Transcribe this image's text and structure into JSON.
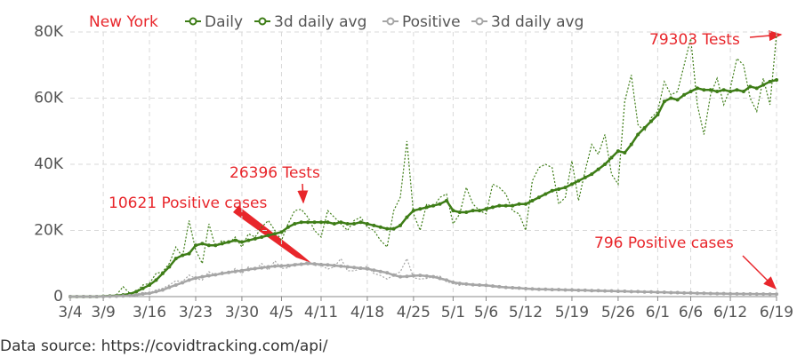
{
  "chart_data": {
    "type": "line",
    "title": "New York",
    "note": "Data source: https://covidtracking.com/api/",
    "categories": [
      "3/4",
      null,
      null,
      null,
      null,
      "3/9",
      null,
      null,
      null,
      null,
      null,
      null,
      "3/16",
      null,
      null,
      null,
      null,
      null,
      null,
      "3/23",
      null,
      null,
      null,
      null,
      null,
      null,
      "3/30",
      null,
      null,
      null,
      null,
      null,
      "4/5",
      null,
      null,
      null,
      null,
      null,
      "4/11",
      null,
      null,
      null,
      null,
      null,
      null,
      "4/18",
      null,
      null,
      null,
      null,
      null,
      null,
      "4/25",
      null,
      null,
      null,
      null,
      null,
      "5/1",
      null,
      null,
      null,
      null,
      "5/6",
      null,
      null,
      null,
      null,
      null,
      "5/12",
      null,
      null,
      null,
      null,
      null,
      null,
      "5/19",
      null,
      null,
      null,
      null,
      null,
      null,
      "5/26",
      null,
      null,
      null,
      null,
      null,
      "6/1",
      null,
      null,
      null,
      null,
      "6/6",
      null,
      null,
      null,
      null,
      null,
      "6/12",
      null,
      null,
      null,
      null,
      null,
      null,
      "6/19"
    ],
    "series": [
      {
        "name": "Daily",
        "color": "#3e7d17",
        "style": "dotted",
        "values": [
          0,
          0,
          0,
          0,
          0,
          300,
          200,
          500,
          3000,
          1000,
          1500,
          3500,
          4000,
          7000,
          7500,
          10000,
          15000,
          12000,
          23000,
          14000,
          10000,
          22000,
          15000,
          17000,
          16000,
          18000,
          15000,
          19000,
          18000,
          21000,
          23000,
          20000,
          17000,
          22000,
          26000,
          26396,
          24000,
          20000,
          18000,
          26000,
          24000,
          22000,
          20000,
          23000,
          24000,
          21000,
          20000,
          17000,
          15000,
          26000,
          30000,
          47000,
          25000,
          20000,
          28000,
          27000,
          30000,
          31000,
          22000,
          25000,
          33000,
          28000,
          26000,
          25000,
          34000,
          33000,
          31000,
          26000,
          25000,
          20000,
          35000,
          39000,
          40000,
          39000,
          28000,
          30000,
          41000,
          29000,
          38000,
          46000,
          43000,
          49000,
          37000,
          34000,
          59000,
          67000,
          52000,
          50000,
          54000,
          56000,
          65000,
          61000,
          62000,
          70000,
          78000,
          58000,
          49000,
          61000,
          66000,
          58000,
          63000,
          72000,
          70000,
          60000,
          56000,
          66000,
          58000,
          79303
        ]
      },
      {
        "name": "3d daily avg",
        "color": "#3e7d17",
        "style": "solid",
        "values": [
          0,
          0,
          0,
          0,
          0,
          100,
          200,
          300,
          500,
          800,
          1500,
          2500,
          3500,
          5000,
          7000,
          9000,
          11500,
          12500,
          13000,
          15500,
          16000,
          15500,
          15500,
          16000,
          16500,
          17000,
          16500,
          17000,
          17500,
          18000,
          18500,
          19000,
          19500,
          21000,
          22000,
          22500,
          22500,
          22500,
          22500,
          22500,
          22000,
          22500,
          22000,
          22000,
          22500,
          22000,
          21500,
          21000,
          20500,
          20500,
          21500,
          24000,
          26000,
          26500,
          27000,
          27500,
          28000,
          29000,
          26000,
          25500,
          25500,
          26000,
          26000,
          26500,
          27000,
          27500,
          27500,
          27500,
          28000,
          28000,
          29000,
          30000,
          31000,
          32000,
          32500,
          33000,
          34000,
          35000,
          36000,
          37000,
          38500,
          40000,
          42000,
          44000,
          43500,
          46000,
          49000,
          51000,
          53000,
          55000,
          59000,
          60000,
          59500,
          61000,
          62000,
          63000,
          62500,
          62500,
          62000,
          62500,
          62000,
          62500,
          62000,
          63500,
          63000,
          64000,
          65000,
          65500
        ]
      },
      {
        "name": "Positive",
        "color": "#a6a6a6",
        "style": "dotted",
        "values": [
          0,
          0,
          0,
          0,
          0,
          0,
          100,
          200,
          300,
          400,
          700,
          1300,
          1100,
          2000,
          2500,
          3500,
          4800,
          4500,
          6500,
          5500,
          5000,
          7500,
          6500,
          7500,
          7000,
          8500,
          7000,
          9000,
          8000,
          10000,
          8000,
          10800,
          8500,
          8700,
          10000,
          9800,
          10621,
          9400,
          9500,
          8300,
          9000,
          11500,
          7800,
          7800,
          8400,
          9200,
          7000,
          6400,
          5300,
          6500,
          7500,
          11500,
          5700,
          5300,
          5500,
          6000,
          6200,
          4500,
          4000,
          3400,
          3800,
          3600,
          3300,
          3400,
          3000,
          2700,
          2800,
          2500,
          2300,
          2300,
          2200,
          2000,
          2100,
          2200,
          1900,
          1900,
          1800,
          1800,
          1900,
          1600,
          1600,
          1500,
          1600,
          1500,
          1500,
          1600,
          1400,
          1300,
          1300,
          1200,
          1300,
          1200,
          1100,
          1000,
          1200,
          1000,
          900,
          800,
          900,
          900,
          800,
          900,
          800,
          700,
          700,
          800,
          600,
          796
        ]
      },
      {
        "name": "3d daily avg",
        "color": "#a6a6a6",
        "style": "solid",
        "values": [
          0,
          0,
          0,
          0,
          0,
          50,
          100,
          150,
          200,
          300,
          500,
          800,
          1000,
          1500,
          2000,
          2800,
          3500,
          4200,
          5000,
          5600,
          6000,
          6300,
          6600,
          7000,
          7300,
          7600,
          7900,
          8200,
          8500,
          8700,
          9000,
          9200,
          9300,
          9400,
          9600,
          9800,
          10000,
          9900,
          9700,
          9600,
          9400,
          9200,
          9000,
          8800,
          8600,
          8400,
          8000,
          7600,
          7200,
          6500,
          6000,
          6100,
          6300,
          6400,
          6200,
          6000,
          5500,
          5000,
          4300,
          4000,
          3800,
          3600,
          3500,
          3400,
          3200,
          3000,
          2800,
          2700,
          2600,
          2400,
          2300,
          2200,
          2200,
          2100,
          2100,
          2000,
          2000,
          1900,
          1900,
          1800,
          1800,
          1700,
          1700,
          1600,
          1600,
          1500,
          1500,
          1400,
          1400,
          1300,
          1300,
          1200,
          1200,
          1100,
          1100,
          1000,
          1000,
          950,
          900,
          900,
          850,
          850,
          800,
          800,
          780,
          760,
          750,
          740
        ]
      }
    ],
    "ylim": [
      0,
      80000
    ],
    "yticks": [
      {
        "value": 0,
        "label": "0"
      },
      {
        "value": 20000,
        "label": "20K"
      },
      {
        "value": 40000,
        "label": "40K"
      },
      {
        "value": 60000,
        "label": "60K"
      },
      {
        "value": 80000,
        "label": "80K"
      }
    ],
    "grid": true,
    "annotations": [
      "79303 Tests",
      "26396 Tests",
      "10621 Positive cases",
      "796 Positive cases"
    ]
  }
}
